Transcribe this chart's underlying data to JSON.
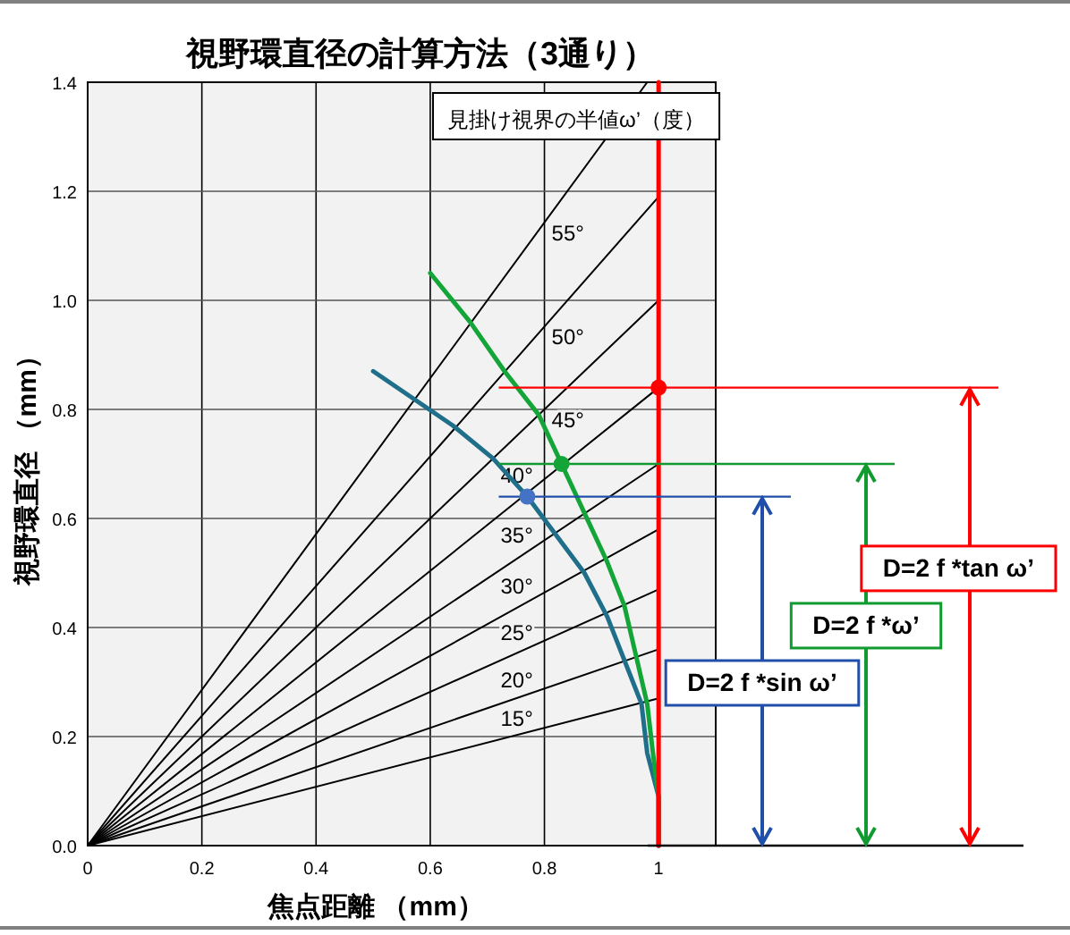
{
  "chart_data": {
    "type": "line",
    "title": "視野環直径の計算方法（3通り）",
    "xlabel": "焦点距離 （mm）",
    "ylabel": "視野環直径 （mm）",
    "xlim": [
      0,
      1.1
    ],
    "ylim": [
      0,
      1.4
    ],
    "xticks": [
      0,
      0.2,
      0.4,
      0.6,
      0.8,
      1
    ],
    "yticks": [
      {
        "value": 0,
        "label": "0.0"
      },
      0.2,
      0.4,
      0.6,
      0.8,
      {
        "value": 1,
        "label": "1.0"
      },
      1.2,
      1.4
    ],
    "grid": true,
    "legend": false,
    "marker": "none",
    "annotations": [
      "見掛け視界の半値ω’（度）",
      "D=2 f *sin ω’",
      "D=2 f *ω’",
      "D=2 f *tan ω’"
    ],
    "series": [
      {
        "name": "15°",
        "color": "#000000",
        "x": [
          0,
          1
        ],
        "values": [
          0,
          0.27
        ]
      },
      {
        "name": "20°",
        "color": "#000000",
        "x": [
          0,
          1
        ],
        "values": [
          0,
          0.36
        ]
      },
      {
        "name": "25°",
        "color": "#000000",
        "x": [
          0,
          1
        ],
        "values": [
          0,
          0.47
        ]
      },
      {
        "name": "30°",
        "color": "#000000",
        "x": [
          0,
          1
        ],
        "values": [
          0,
          0.58
        ]
      },
      {
        "name": "35°",
        "color": "#000000",
        "x": [
          0,
          1
        ],
        "values": [
          0,
          0.7
        ]
      },
      {
        "name": "40°",
        "color": "#000000",
        "x": [
          0,
          1
        ],
        "values": [
          0,
          0.84
        ]
      },
      {
        "name": "45°",
        "color": "#000000",
        "x": [
          0,
          1
        ],
        "values": [
          0,
          1.0
        ]
      },
      {
        "name": "50°",
        "color": "#000000",
        "x": [
          0,
          1
        ],
        "values": [
          0,
          1.19
        ]
      },
      {
        "name": "55°",
        "color": "#000000",
        "x": [
          0,
          0.98
        ],
        "values": [
          0,
          1.4
        ]
      },
      {
        "color": "#1f6f8b",
        "x": [
          0.5,
          0.57,
          0.64,
          0.71,
          0.77,
          0.82,
          0.87,
          0.91,
          0.94,
          0.97,
          0.98,
          1.0,
          1.0
        ],
        "values": [
          0.87,
          0.82,
          0.77,
          0.71,
          0.64,
          0.57,
          0.5,
          0.42,
          0.34,
          0.26,
          0.17,
          0.09,
          0
        ]
      },
      {
        "color": "#13a538",
        "x": [
          0.6,
          0.67,
          0.73,
          0.79,
          0.83,
          0.87,
          0.91,
          0.94,
          0.96,
          0.98,
          0.99,
          1.0,
          1.0
        ],
        "values": [
          1.05,
          0.96,
          0.87,
          0.79,
          0.7,
          0.61,
          0.52,
          0.44,
          0.35,
          0.26,
          0.17,
          0.09,
          0
        ]
      },
      {
        "color": "#ff0000",
        "x": [
          1,
          1
        ],
        "values": [
          0,
          1.4
        ]
      },
      {
        "type": "scatter",
        "marker": "circle",
        "color": "#4472c4",
        "x": [
          0.77
        ],
        "values": [
          0.64
        ]
      },
      {
        "type": "scatter",
        "marker": "circle",
        "color": "#13a538",
        "x": [
          0.83
        ],
        "values": [
          0.7
        ]
      },
      {
        "type": "scatter",
        "marker": "circle",
        "color": "#ff0000",
        "x": [
          1
        ],
        "values": [
          0.84
        ]
      }
    ],
    "ref_lines": [
      {
        "axis": "y",
        "value": 0.64,
        "color": "#1f4fa8"
      },
      {
        "axis": "y",
        "value": 0.7,
        "color": "#109a30"
      },
      {
        "axis": "y",
        "value": 0.84,
        "color": "#ff0000"
      }
    ]
  }
}
